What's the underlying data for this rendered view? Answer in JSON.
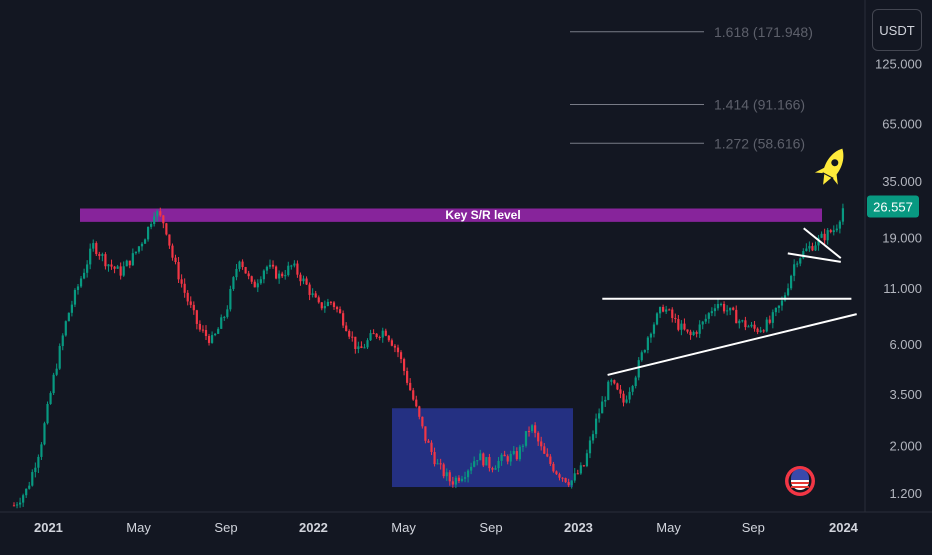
{
  "currency": {
    "label": "USDT"
  },
  "chart_data": {
    "type": "candlestick",
    "scale": "log",
    "price_axis": {
      "ticks": [
        "125.000",
        "65.000",
        "35.000",
        "19.000",
        "11.000",
        "6.000",
        "3.500",
        "2.000",
        "1.200"
      ],
      "tick_values": [
        125,
        65,
        35,
        19,
        11,
        6,
        3.5,
        2,
        1.2
      ],
      "current_price_label": "26.557",
      "current_price": 26.557,
      "current_price_color": "#089981"
    },
    "time_axis": {
      "labels": [
        "2021",
        "May",
        "Sep",
        "2022",
        "May",
        "Sep",
        "2023",
        "May",
        "Sep",
        "2024"
      ],
      "bold": [
        true,
        false,
        false,
        true,
        false,
        false,
        true,
        false,
        false,
        true
      ]
    },
    "fib_levels": [
      {
        "label": "1.618 (171.948)",
        "value": 171.948
      },
      {
        "label": "1.414 (91.166)",
        "value": 91.166
      },
      {
        "label": "1.272 (58.616)",
        "value": 58.616
      }
    ],
    "key_level": {
      "label": "Key S/R level",
      "low": 22.5,
      "high": 26.0,
      "color": "#9c27b0"
    },
    "accumulation_box": {
      "low": 1.28,
      "high": 3.0,
      "color": "#283593"
    },
    "price_path": [
      [
        0,
        1.05
      ],
      [
        0.5,
        1.25
      ],
      [
        1,
        2.0
      ],
      [
        1.5,
        4.2
      ],
      [
        2,
        8.0
      ],
      [
        2.5,
        12.0
      ],
      [
        3,
        17.5
      ],
      [
        3.5,
        14.5
      ],
      [
        4,
        13.0
      ],
      [
        4.5,
        15.5
      ],
      [
        5,
        20.0
      ],
      [
        5.3,
        25.5
      ],
      [
        5.7,
        22.0
      ],
      [
        6,
        15.0
      ],
      [
        6.5,
        10.0
      ],
      [
        7,
        7.0
      ],
      [
        7.5,
        6.2
      ],
      [
        8,
        8.5
      ],
      [
        8.5,
        15.5
      ],
      [
        9,
        11.0
      ],
      [
        9.5,
        14.0
      ],
      [
        10,
        12.5
      ],
      [
        10.5,
        14.0
      ],
      [
        11,
        11.5
      ],
      [
        11.5,
        9.0
      ],
      [
        12,
        9.5
      ],
      [
        12.5,
        7.5
      ],
      [
        13,
        5.5
      ],
      [
        13.5,
        6.5
      ],
      [
        14,
        7.0
      ],
      [
        14.5,
        5.5
      ],
      [
        15,
        3.5
      ],
      [
        15.5,
        2.2
      ],
      [
        16,
        1.6
      ],
      [
        16.5,
        1.35
      ],
      [
        17,
        1.5
      ],
      [
        17.5,
        1.8
      ],
      [
        18,
        1.6
      ],
      [
        18.5,
        1.75
      ],
      [
        19,
        1.8
      ],
      [
        19.5,
        2.5
      ],
      [
        20,
        1.8
      ],
      [
        20.5,
        1.5
      ],
      [
        21,
        1.35
      ],
      [
        21.5,
        1.6
      ],
      [
        22,
        2.7
      ],
      [
        22.5,
        4.0
      ],
      [
        23,
        3.2
      ],
      [
        23.5,
        4.5
      ],
      [
        24,
        7.0
      ],
      [
        24.5,
        9.0
      ],
      [
        25,
        7.5
      ],
      [
        25.5,
        6.5
      ],
      [
        26,
        7.5
      ],
      [
        26.5,
        9.5
      ],
      [
        27,
        8.5
      ],
      [
        27.5,
        7.5
      ],
      [
        28,
        7.0
      ],
      [
        28.5,
        7.5
      ],
      [
        29,
        9.5
      ],
      [
        29.5,
        15.0
      ],
      [
        30,
        17.0
      ],
      [
        30.5,
        19.0
      ],
      [
        31,
        21.0
      ],
      [
        31.3,
        26.557
      ]
    ],
    "trendlines": [
      {
        "name": "resistance",
        "from": [
          22.2,
          9.8
        ],
        "to": [
          31.6,
          9.8
        ]
      },
      {
        "name": "ascending-support",
        "from": [
          22.4,
          4.3
        ],
        "to": [
          31.8,
          8.3
        ]
      },
      {
        "name": "pennant-upper",
        "from": [
          29.8,
          21.0
        ],
        "to": [
          31.2,
          15.2
        ]
      },
      {
        "name": "pennant-lower",
        "from": [
          29.2,
          16.0
        ],
        "to": [
          31.2,
          14.6
        ]
      }
    ]
  }
}
